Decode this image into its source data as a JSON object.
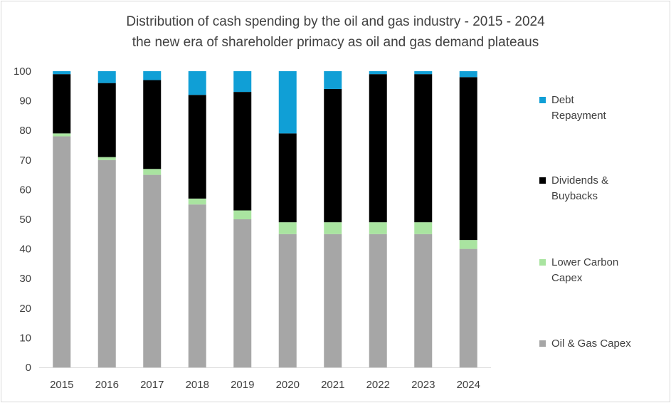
{
  "chart_data": {
    "type": "bar",
    "stacked": true,
    "title": "Distribution of cash spending by the oil and gas industry - 2015 - 2024",
    "subtitle": "the new era of shareholder primacy as oil and gas demand plateaus",
    "xlabel": "",
    "ylabel": "",
    "ylim": [
      0,
      100
    ],
    "yticks": [
      0,
      10,
      20,
      30,
      40,
      50,
      60,
      70,
      80,
      90,
      100
    ],
    "grid": false,
    "legend": "right",
    "categories": [
      "2015",
      "2016",
      "2017",
      "2018",
      "2019",
      "2020",
      "2021",
      "2022",
      "2023",
      "2024"
    ],
    "series": [
      {
        "name": "Oil & Gas Capex",
        "color": "#a6a6a6",
        "values": [
          78,
          70,
          65,
          55,
          50,
          45,
          45,
          45,
          45,
          40
        ]
      },
      {
        "name": "Lower Carbon Capex",
        "color": "#a9e4a0",
        "values": [
          1,
          1,
          2,
          2,
          3,
          4,
          4,
          4,
          4,
          3
        ]
      },
      {
        "name": "Dividends & Buybacks",
        "color": "#000000",
        "values": [
          20,
          25,
          30,
          35,
          40,
          30,
          45,
          50,
          50,
          55
        ]
      },
      {
        "name": "Debt Repayment",
        "color": "#109fd6",
        "values": [
          1,
          4,
          3,
          8,
          7,
          21,
          6,
          1,
          1,
          2
        ]
      }
    ],
    "legend_labels": [
      {
        "lines": [
          "Debt",
          "Repayment"
        ],
        "series": "Debt Repayment"
      },
      {
        "lines": [
          "Dividends &",
          "Buybacks"
        ],
        "series": "Dividends & Buybacks"
      },
      {
        "lines": [
          "Lower Carbon",
          "Capex"
        ],
        "series": "Lower Carbon Capex"
      },
      {
        "lines": [
          "Oil & Gas Capex"
        ],
        "series": "Oil & Gas Capex"
      }
    ]
  }
}
